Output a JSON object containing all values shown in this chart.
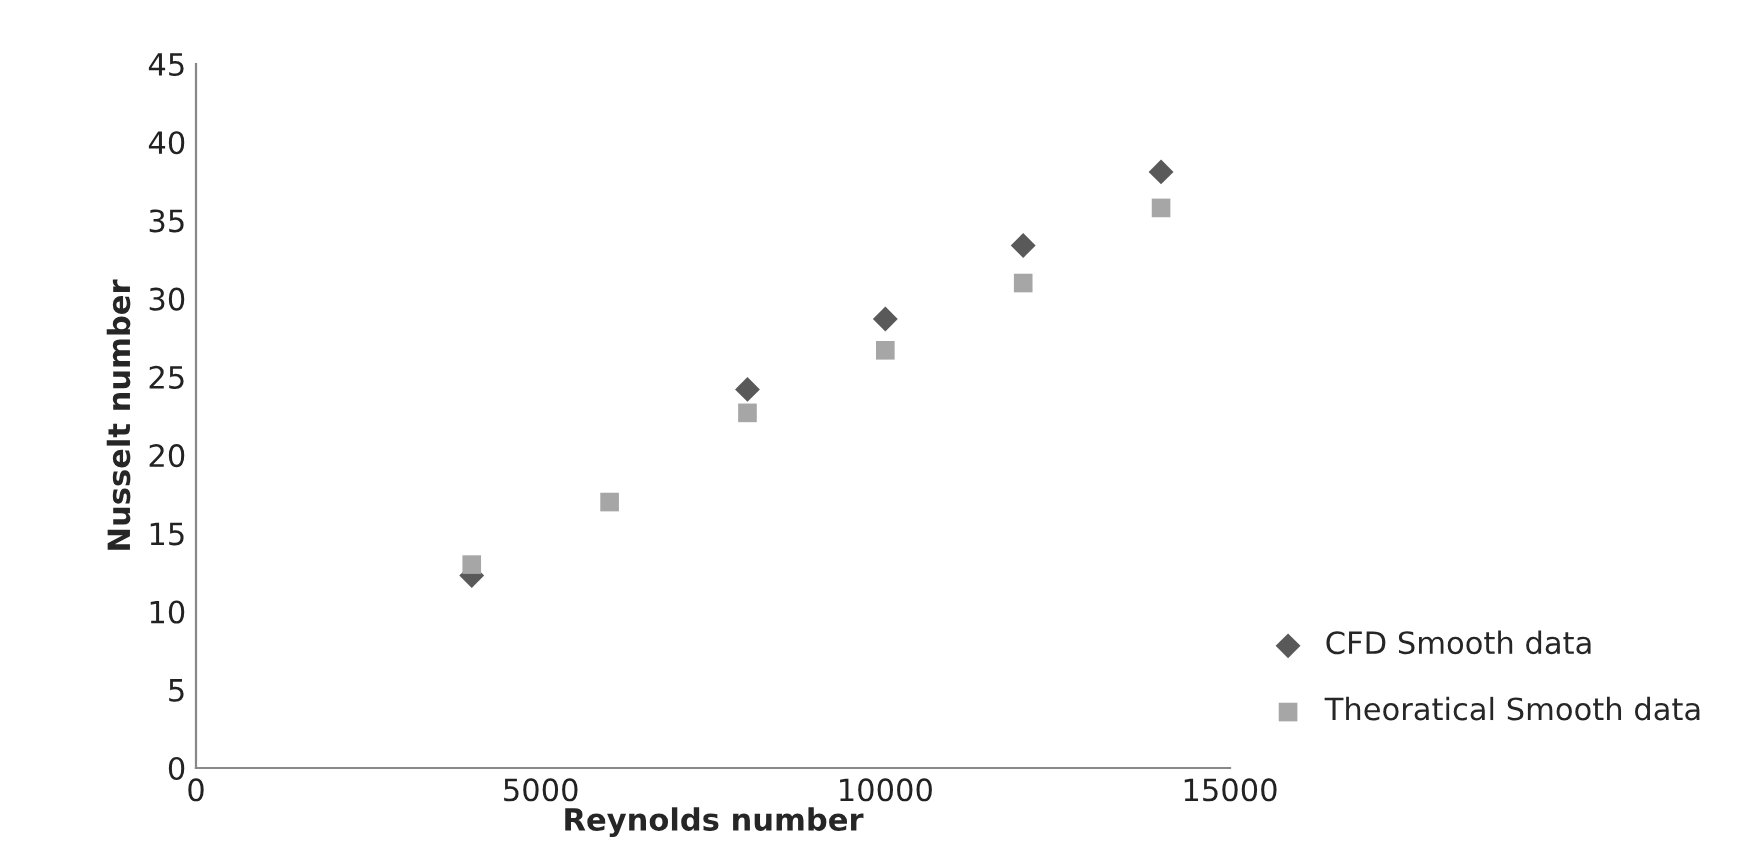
{
  "chart_data": {
    "type": "scatter",
    "xlabel": "Reynolds number",
    "ylabel": "Nusselt number",
    "xlim": [
      0,
      15000
    ],
    "xticks": [
      0,
      5000,
      10000,
      15000
    ],
    "ylim": [
      0,
      45
    ],
    "yticks": [
      0,
      5,
      10,
      15,
      20,
      25,
      30,
      35,
      40,
      45
    ],
    "grid": false,
    "legend": "bottom right",
    "series": [
      {
        "name": "CFD Smooth data",
        "color": "#595959",
        "marker": "diamond",
        "x": [
          4000,
          8000,
          10000,
          12000,
          14000
        ],
        "values": [
          12.3,
          24.2,
          28.7,
          33.4,
          38.1
        ]
      },
      {
        "name": "Theoratical Smooth data",
        "color": "#a6a6a6",
        "marker": "square",
        "x": [
          4000,
          6000,
          8000,
          10000,
          12000,
          14000
        ],
        "values": [
          13,
          17,
          22.7,
          26.7,
          31,
          35.8
        ]
      }
    ]
  }
}
